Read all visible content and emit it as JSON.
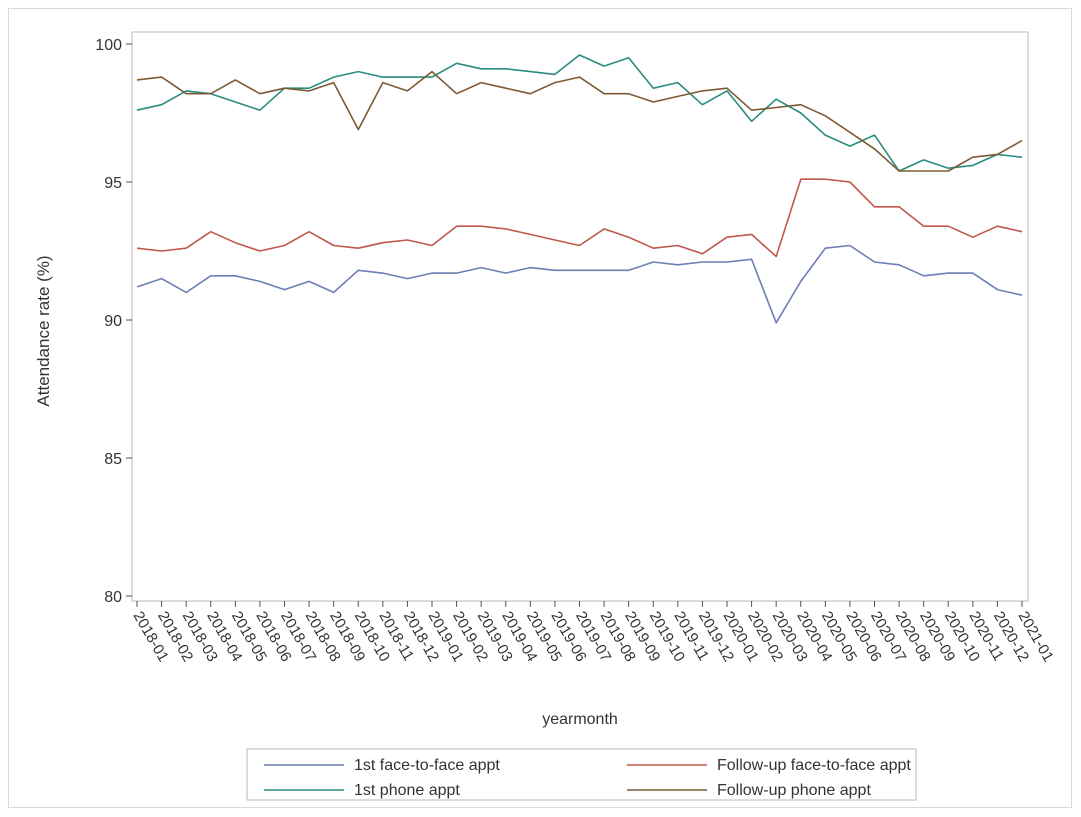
{
  "chart_data": {
    "type": "line",
    "title": "",
    "xlabel": "yearmonth",
    "ylabel": "Attendance rate (%)",
    "ylim": [
      80,
      100
    ],
    "yticks": [
      80,
      85,
      90,
      95,
      100
    ],
    "grid": false,
    "legend_position": "bottom",
    "categories": [
      "2018-01",
      "2018-02",
      "2018-03",
      "2018-04",
      "2018-05",
      "2018-06",
      "2018-07",
      "2018-08",
      "2018-09",
      "2018-10",
      "2018-11",
      "2018-12",
      "2019-01",
      "2019-02",
      "2019-03",
      "2019-04",
      "2019-05",
      "2019-06",
      "2019-07",
      "2019-08",
      "2019-09",
      "2019-10",
      "2019-11",
      "2019-12",
      "2020-01",
      "2020-02",
      "2020-03",
      "2020-04",
      "2020-05",
      "2020-06",
      "2020-07",
      "2020-08",
      "2020-09",
      "2020-10",
      "2020-11",
      "2020-12",
      "2021-01"
    ],
    "series": [
      {
        "name": "1st face-to-face appt",
        "color": "#6c7fb8",
        "values": [
          91.2,
          91.5,
          91.0,
          91.6,
          91.6,
          91.4,
          91.1,
          91.4,
          91.0,
          91.8,
          91.7,
          91.5,
          91.7,
          91.7,
          91.9,
          91.7,
          91.9,
          91.8,
          91.8,
          91.8,
          91.8,
          92.1,
          92.0,
          92.1,
          92.1,
          92.2,
          89.9,
          91.4,
          92.6,
          92.7,
          92.1,
          92.0,
          91.6,
          91.7,
          91.7,
          91.1,
          90.9
        ]
      },
      {
        "name": "Follow-up face-to-face appt",
        "color": "#c0584f",
        "values": [
          92.6,
          92.5,
          92.6,
          93.2,
          92.8,
          92.5,
          92.7,
          93.2,
          92.7,
          92.6,
          92.8,
          92.9,
          92.7,
          93.4,
          93.4,
          93.3,
          93.1,
          92.9,
          92.7,
          93.3,
          93.0,
          92.6,
          92.7,
          92.4,
          93.0,
          93.1,
          92.3,
          95.1,
          95.1,
          95.0,
          94.1,
          94.1,
          93.4,
          93.4,
          93.0,
          93.4,
          93.2
        ]
      },
      {
        "name": "1st phone appt",
        "color": "#2a8c80",
        "values": [
          97.6,
          97.8,
          98.3,
          98.2,
          97.9,
          97.6,
          98.4,
          98.4,
          98.8,
          99.0,
          98.8,
          98.8,
          98.8,
          99.3,
          99.1,
          99.1,
          99.0,
          98.9,
          99.6,
          99.2,
          99.5,
          98.4,
          98.6,
          97.8,
          98.3,
          97.2,
          98.0,
          97.5,
          96.7,
          96.3,
          96.7,
          95.4,
          95.8,
          95.5,
          95.6,
          96.0,
          95.9
        ]
      },
      {
        "name": "Follow-up phone appt",
        "color": "#7d5a36",
        "values": [
          98.7,
          98.8,
          98.2,
          98.2,
          98.7,
          98.2,
          98.4,
          98.3,
          98.6,
          96.9,
          98.6,
          98.3,
          99.0,
          98.2,
          98.6,
          98.4,
          98.2,
          98.6,
          98.8,
          98.2,
          98.2,
          97.9,
          98.1,
          98.3,
          98.4,
          97.6,
          97.7,
          97.8,
          97.4,
          96.8,
          96.2,
          95.4,
          95.4,
          95.4,
          95.9,
          96.0,
          96.5
        ]
      }
    ]
  }
}
